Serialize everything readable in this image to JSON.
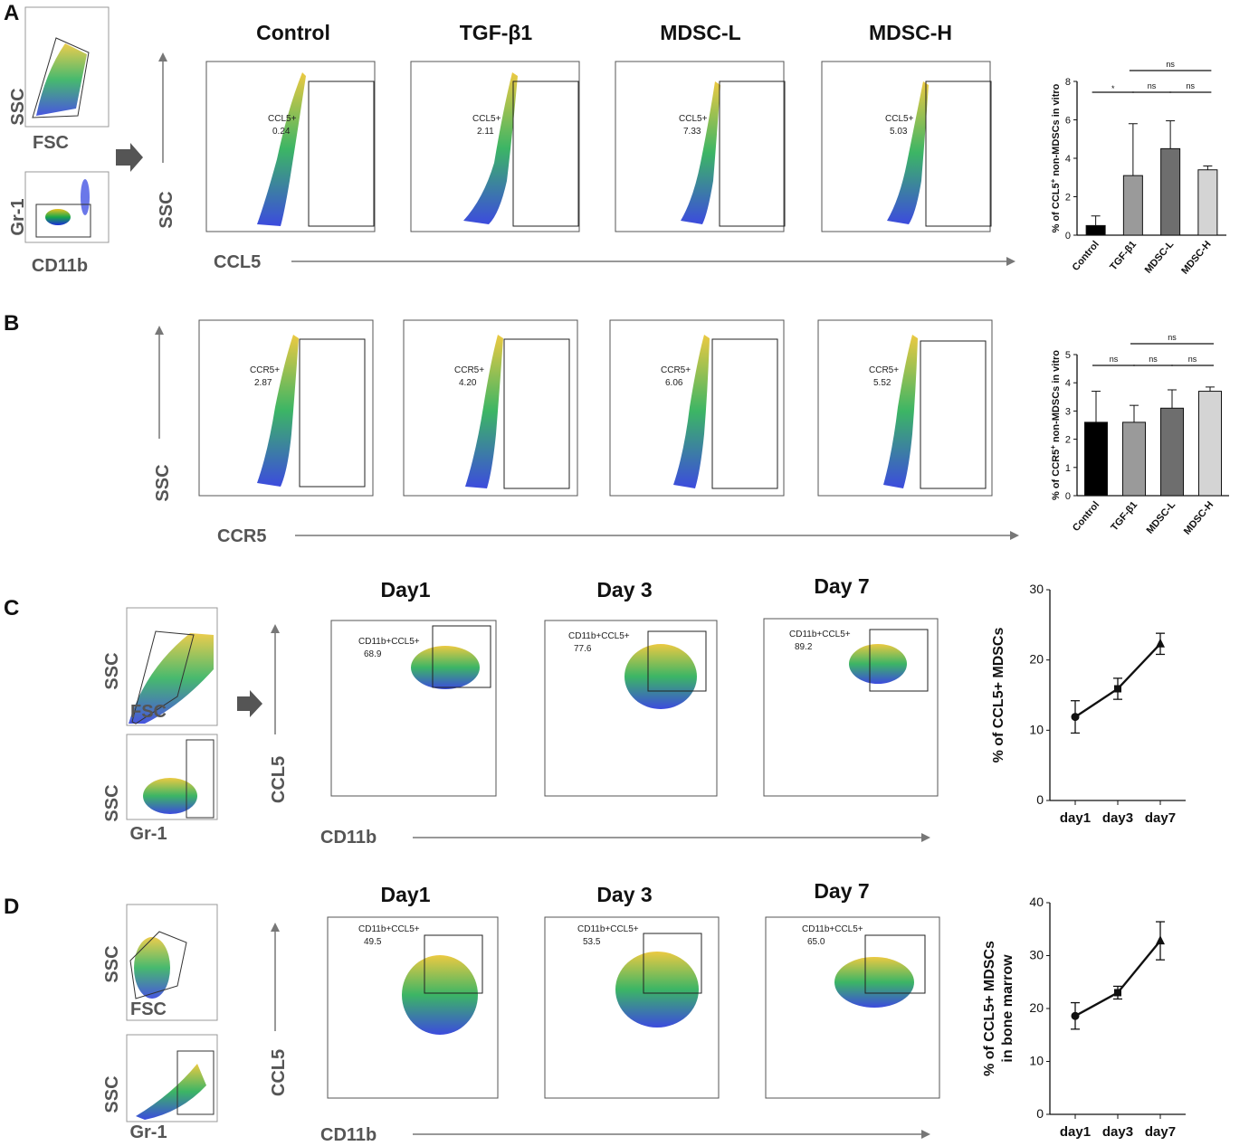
{
  "panels": {
    "A": {
      "letter": "A",
      "thumbs": [
        {
          "y": "SSC",
          "x": "FSC"
        },
        {
          "y": "Gr-1",
          "x": "CD11b"
        }
      ],
      "columns": [
        "Control",
        "TGF-β1",
        "MDSC-L",
        "MDSC-H"
      ],
      "y_axis": "SSC",
      "x_axis": "CCL5",
      "gate_label": "CCL5+",
      "gate_values": [
        "0.24",
        "2.11",
        "7.33",
        "5.03"
      ]
    },
    "B": {
      "letter": "B",
      "y_axis": "SSC",
      "x_axis": "CCR5",
      "gate_label": "CCR5+",
      "gate_values": [
        "2.87",
        "4.20",
        "6.06",
        "5.52"
      ]
    },
    "C": {
      "letter": "C",
      "thumbs": [
        {
          "y": "SSC",
          "x": "FSC"
        },
        {
          "y": "SSC",
          "x": "Gr-1"
        }
      ],
      "columns": [
        "Day1",
        "Day 3",
        "Day 7"
      ],
      "y_axis": "CCL5",
      "x_axis": "CD11b",
      "gate_label": "CD11b+CCL5+",
      "gate_values": [
        "68.9",
        "77.6",
        "89.2"
      ]
    },
    "D": {
      "letter": "D",
      "thumbs": [
        {
          "y": "SSC",
          "x": "FSC"
        },
        {
          "y": "SSC",
          "x": "Gr-1"
        }
      ],
      "columns": [
        "Day1",
        "Day 3",
        "Day 7"
      ],
      "y_axis": "CCL5",
      "x_axis": "CD11b",
      "gate_label": "CD11b+CCL5+",
      "gate_values": [
        "49.5",
        "53.5",
        "65.0"
      ]
    }
  },
  "chart_data": [
    {
      "id": "A",
      "type": "bar",
      "ylabel_pre": "% of CCL5",
      "ylabel_sup": "+",
      "ylabel_post": " non-MDSCs in vitro",
      "categories": [
        "Control",
        "TGF-β1",
        "MDSC-L",
        "MDSC-H"
      ],
      "values": [
        0.5,
        3.1,
        4.5,
        3.4
      ],
      "errors": [
        0.5,
        2.7,
        1.45,
        0.2
      ],
      "colors": [
        "#000000",
        "#9a9a9a",
        "#6e6e6e",
        "#d4d4d4"
      ],
      "ylim": [
        0,
        8
      ],
      "yticks": [
        0,
        2,
        4,
        6,
        8
      ],
      "significance": [
        {
          "from": 0,
          "to": 1,
          "label": "*",
          "level": 0
        },
        {
          "from": 1,
          "to": 2,
          "label": "ns",
          "level": 0
        },
        {
          "from": 2,
          "to": 3,
          "label": "ns",
          "level": 0
        },
        {
          "from": 1,
          "to": 3,
          "label": "ns",
          "level": 1
        }
      ]
    },
    {
      "id": "B",
      "type": "bar",
      "ylabel_pre": "% of CCR5",
      "ylabel_sup": "+",
      "ylabel_post": " non-MDSCs in vitro",
      "categories": [
        "Control",
        "TGF-β1",
        "MDSC-L",
        "MDSC-H"
      ],
      "values": [
        2.6,
        2.6,
        3.1,
        3.7
      ],
      "errors": [
        1.1,
        0.6,
        0.65,
        0.15
      ],
      "colors": [
        "#000000",
        "#9a9a9a",
        "#6e6e6e",
        "#d4d4d4"
      ],
      "ylim": [
        0,
        5
      ],
      "yticks": [
        0,
        1,
        2,
        3,
        4,
        5
      ],
      "significance": [
        {
          "from": 0,
          "to": 1,
          "label": "ns",
          "level": 0
        },
        {
          "from": 1,
          "to": 2,
          "label": "ns",
          "level": 0
        },
        {
          "from": 2,
          "to": 3,
          "label": "ns",
          "level": 0
        },
        {
          "from": 1,
          "to": 3,
          "label": "ns",
          "level": 1
        }
      ]
    },
    {
      "id": "C",
      "type": "line",
      "ylabel": "% of CCL5+ MDSCs",
      "ylabel2": "",
      "categories": [
        "day1",
        "day3",
        "day7"
      ],
      "values": [
        11.9,
        15.9,
        22.3
      ],
      "errors": [
        2.3,
        1.5,
        1.5
      ],
      "markers": [
        "circle",
        "square",
        "triangle"
      ],
      "ylim": [
        0,
        30
      ],
      "yticks": [
        0,
        10,
        20,
        30
      ]
    },
    {
      "id": "D",
      "type": "line",
      "ylabel": "% of CCL5+ MDSCs",
      "ylabel2": "in bone marrow",
      "categories": [
        "day1",
        "day3",
        "day7"
      ],
      "values": [
        18.6,
        23.0,
        32.8
      ],
      "errors": [
        2.5,
        1.2,
        3.6
      ],
      "markers": [
        "circle",
        "square",
        "triangle"
      ],
      "ylim": [
        0,
        40
      ],
      "yticks": [
        0,
        10,
        20,
        30,
        40
      ]
    }
  ]
}
